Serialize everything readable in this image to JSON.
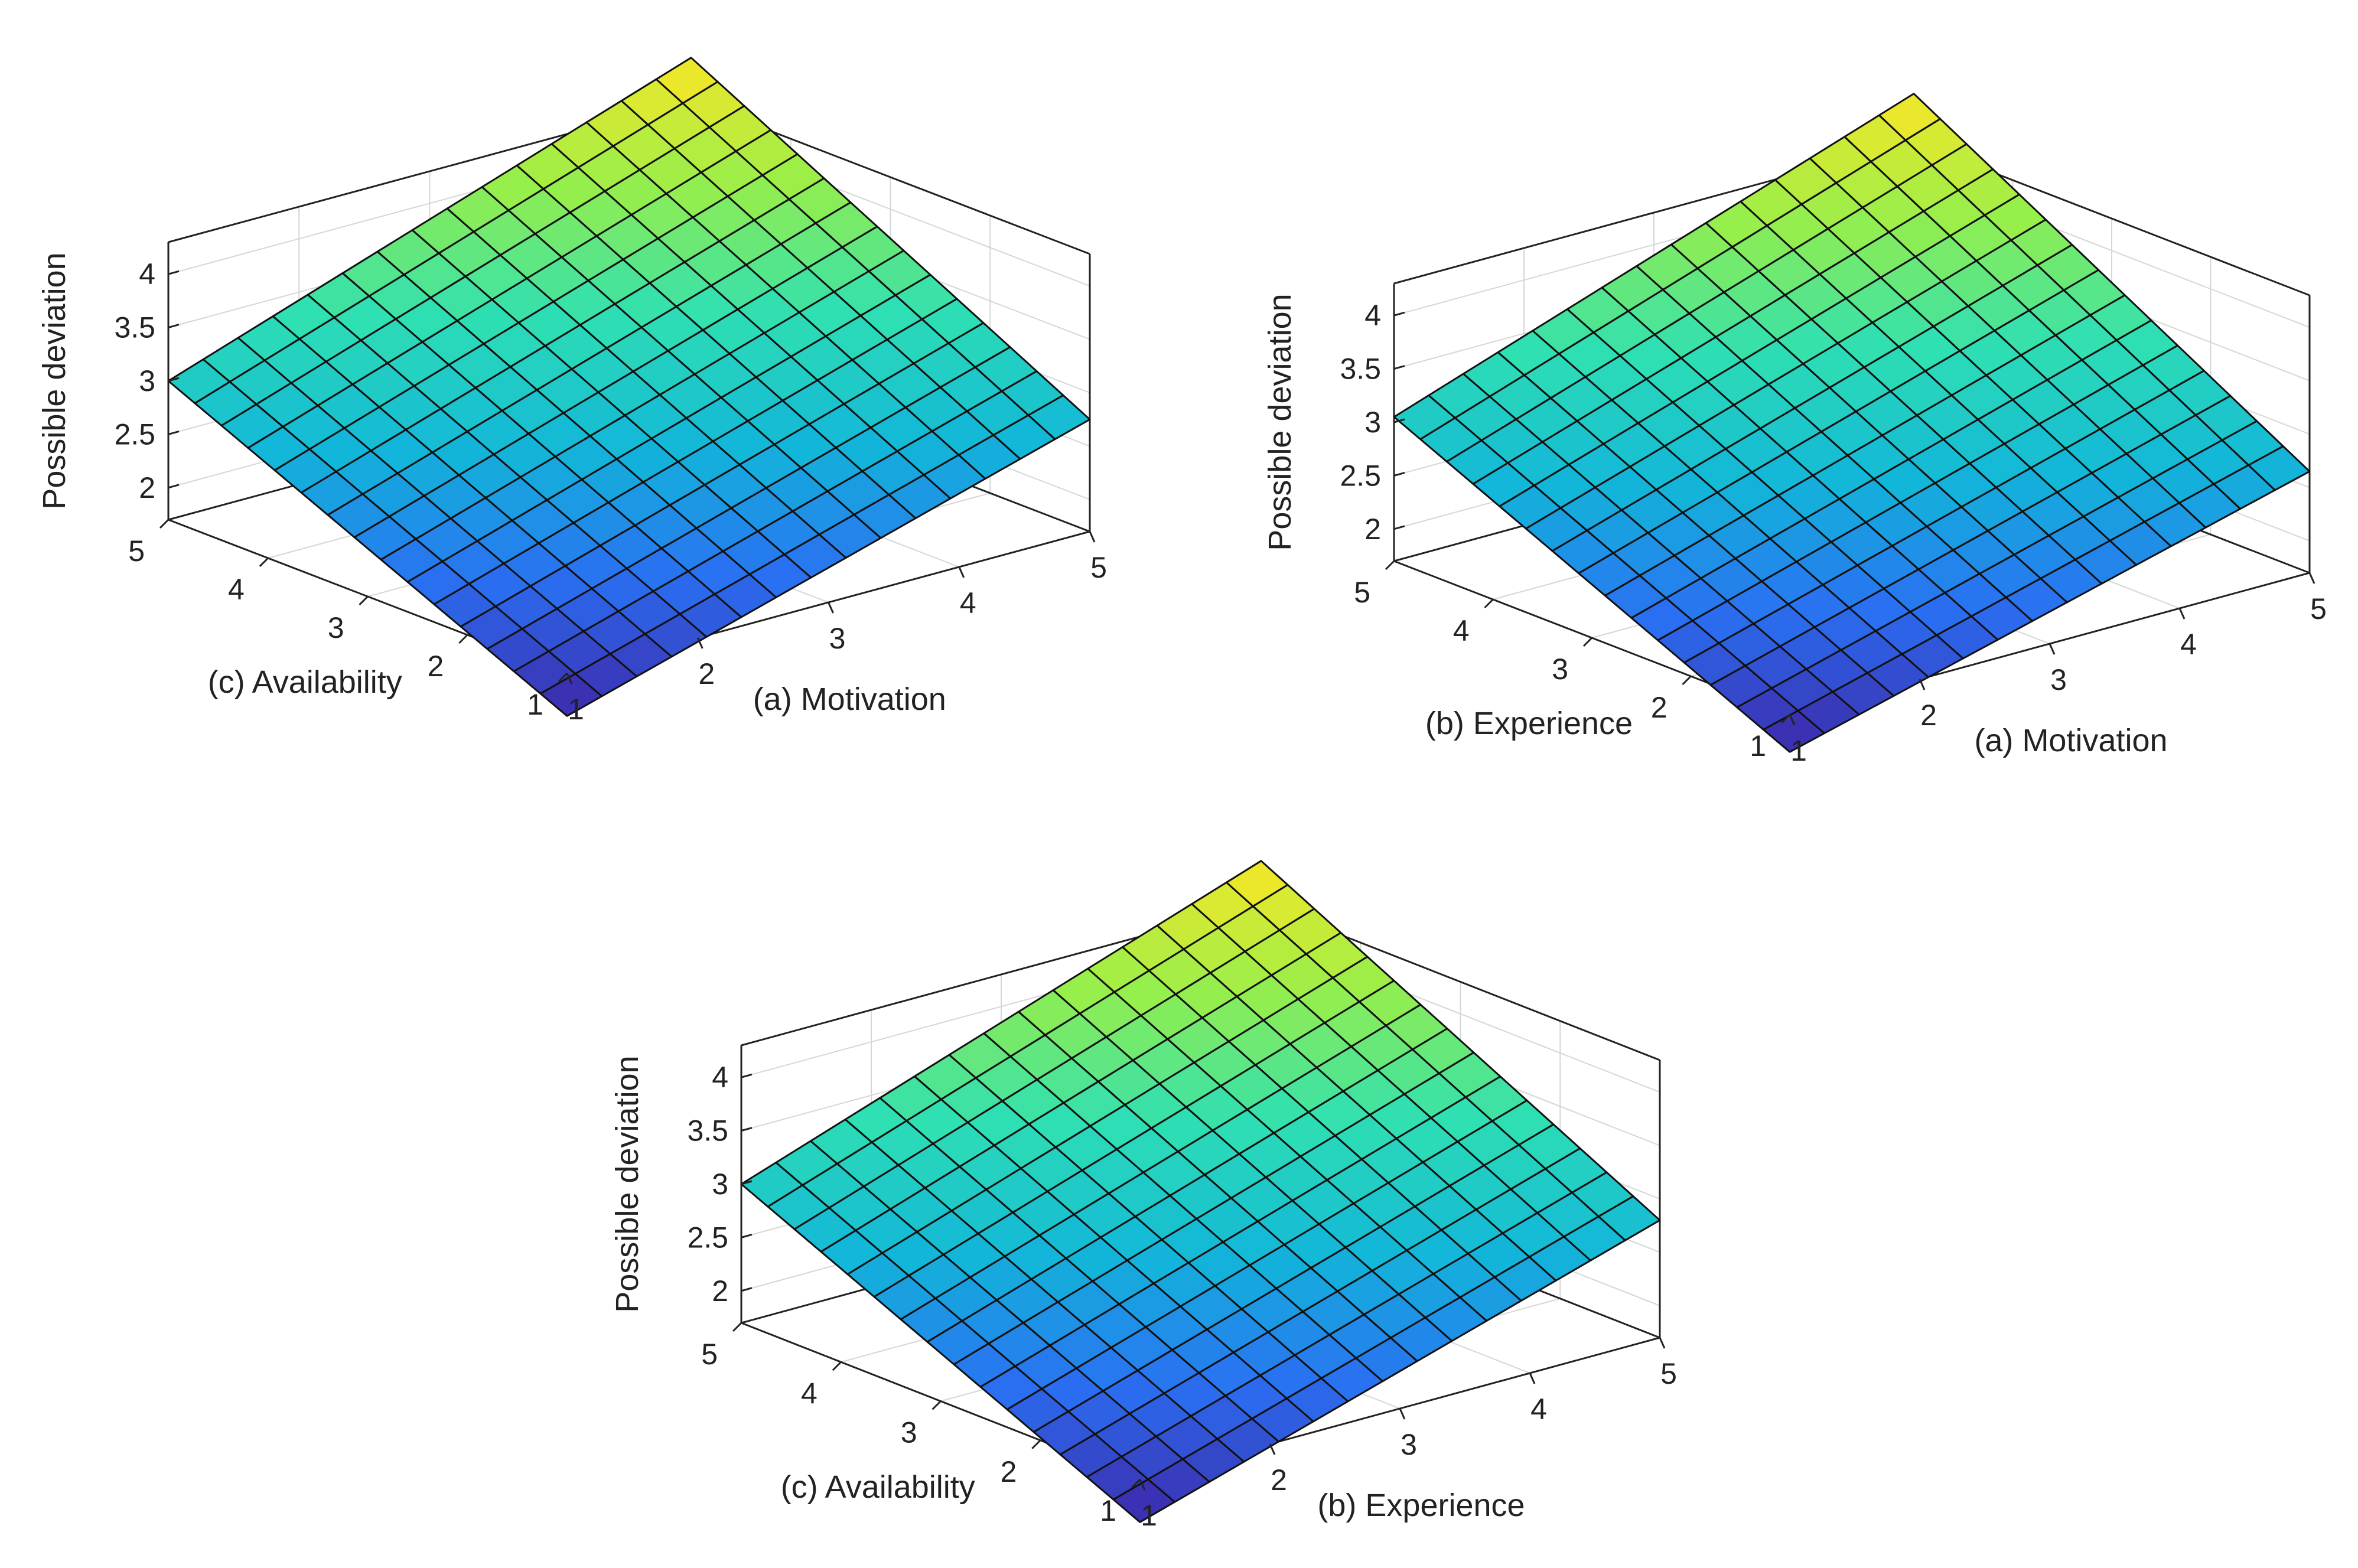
{
  "chart_data": [
    {
      "id": "a",
      "type": "surface",
      "title": "",
      "xlabel": "(a) Motivation",
      "ylabel": "(c) Availability",
      "zlabel": "Possible deviation",
      "xlim": [
        1,
        5
      ],
      "ylim": [
        1,
        5
      ],
      "zlim": [
        1.7,
        4.3
      ],
      "x_ticks": [
        "1",
        "2",
        "3",
        "4",
        "5"
      ],
      "y_ticks": [
        "1",
        "2",
        "3",
        "4",
        "5"
      ],
      "z_ticks": [
        "2",
        "2.5",
        "3",
        "3.5",
        "4"
      ],
      "grid": true,
      "mesh_divisions": 15,
      "corner_values": {
        "at_x1_y1": 1.3,
        "at_x5_y1": 2.75,
        "at_x1_y5": 3.0,
        "at_x5_y5": 4.7
      },
      "colormap": [
        "#3e26a8",
        "#2a6ff2",
        "#12b7d9",
        "#2fe0b2",
        "#97ef4a",
        "#fde725"
      ]
    },
    {
      "id": "b",
      "type": "surface",
      "title": "",
      "xlabel": "(a) Motivation",
      "ylabel": "(b) Experience",
      "zlabel": "Possible deviation",
      "xlim": [
        1,
        5
      ],
      "ylim": [
        1,
        5
      ],
      "zlim": [
        1.7,
        4.3
      ],
      "x_ticks": [
        "1",
        "2",
        "3",
        "4",
        "5"
      ],
      "y_ticks": [
        "1",
        "2",
        "3",
        "4",
        "5"
      ],
      "z_ticks": [
        "2",
        "2.5",
        "3",
        "3.5",
        "4"
      ],
      "grid": true,
      "mesh_divisions": 15,
      "corner_values": {
        "at_x1_y1": 1.35,
        "at_x5_y1": 2.65,
        "at_x1_y5": 3.05,
        "at_x5_y5": 4.75
      },
      "colormap": [
        "#3e26a8",
        "#2a6ff2",
        "#12b7d9",
        "#2fe0b2",
        "#97ef4a",
        "#fde725"
      ]
    },
    {
      "id": "c",
      "type": "surface",
      "title": "",
      "xlabel": "(b) Experience",
      "ylabel": "(c) Availability",
      "zlabel": "Possible deviation",
      "xlim": [
        1,
        5
      ],
      "ylim": [
        1,
        5
      ],
      "zlim": [
        1.7,
        4.3
      ],
      "x_ticks": [
        "1",
        "2",
        "3",
        "4",
        "5"
      ],
      "y_ticks": [
        "1",
        "2",
        "3",
        "4",
        "5"
      ],
      "z_ticks": [
        "2",
        "2.5",
        "3",
        "3.5",
        "4"
      ],
      "grid": true,
      "mesh_divisions": 15,
      "corner_values": {
        "at_x1_y1": 1.3,
        "at_x5_y1": 2.8,
        "at_x1_y5": 3.0,
        "at_x5_y5": 4.7
      },
      "colormap": [
        "#3e26a8",
        "#2a6ff2",
        "#12b7d9",
        "#2fe0b2",
        "#97ef4a",
        "#fde725"
      ]
    }
  ]
}
